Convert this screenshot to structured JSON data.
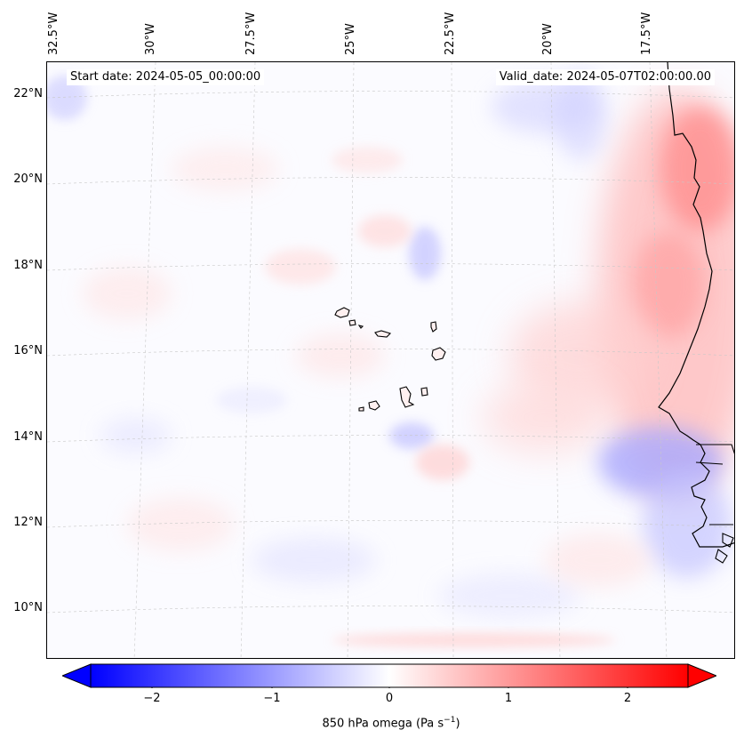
{
  "map": {
    "start_date": "Start date: 2024-05-05_00:00:00",
    "valid_date": "Valid_date: 2024-05-07T02:00:00.00",
    "lon_labels": [
      "32.5°W",
      "30°W",
      "27.5°W",
      "25°W",
      "22.5°W",
      "20°W",
      "17.5°W"
    ],
    "lat_labels": [
      "22°N",
      "20°N",
      "18°N",
      "16°N",
      "14°N",
      "12°N",
      "10°N"
    ],
    "region": "Cabo Verde / West Africa coast"
  },
  "colorbar": {
    "label_prefix": "850 hPa omega (Pa s",
    "label_exp": "−1",
    "label_suffix": ")",
    "ticks": [
      "−2",
      "−1",
      "0",
      "1",
      "2"
    ],
    "range": [
      -2.6,
      2.6
    ],
    "low_color": "#0000ff",
    "mid_color": "#ffffff",
    "high_color": "#ff0000"
  }
}
